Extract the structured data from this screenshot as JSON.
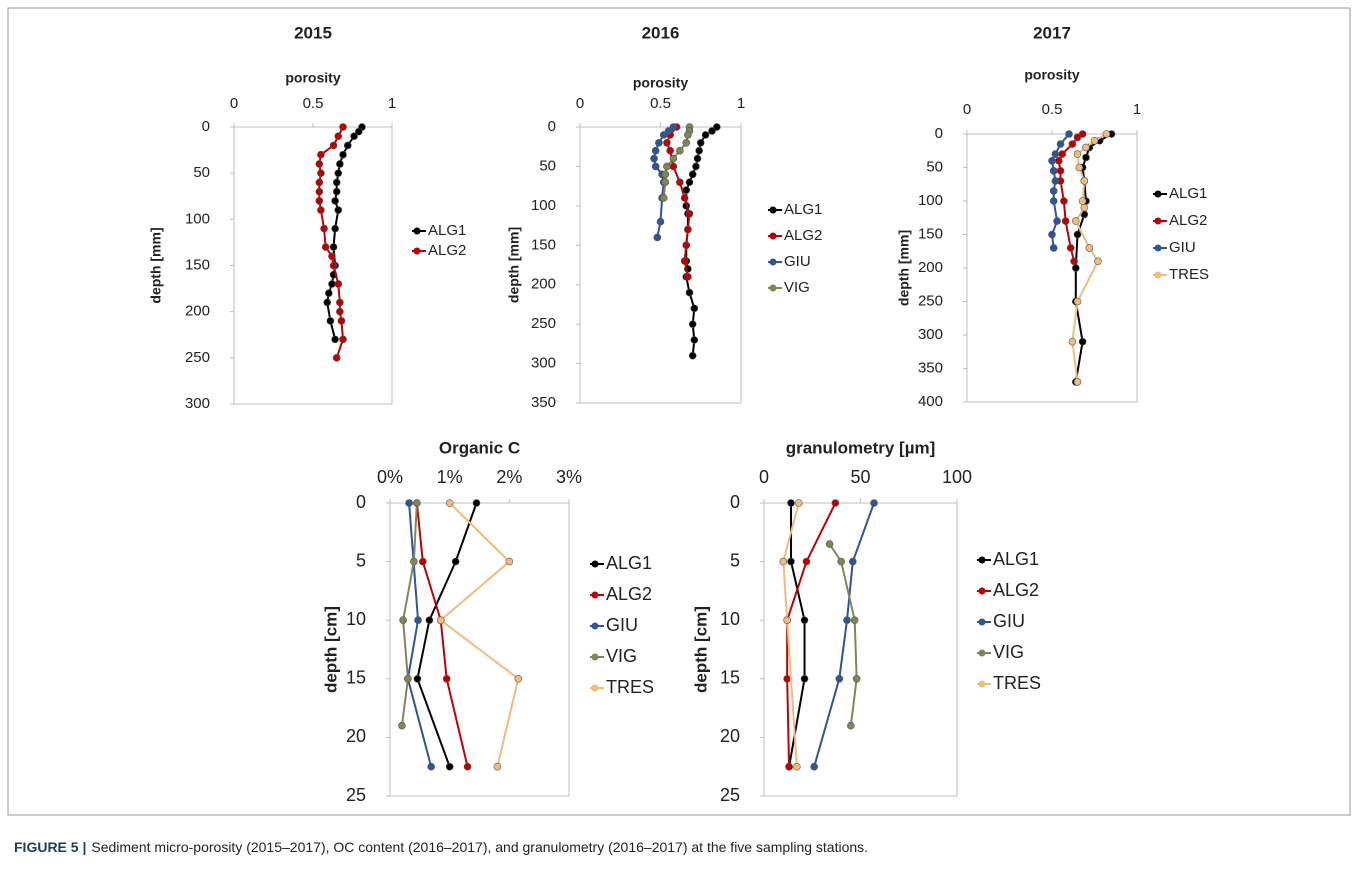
{
  "chart_data": [
    {
      "type": "line",
      "title": "2015",
      "x_label": "porosity",
      "y_label": "depth [mm]",
      "xlim": [
        0,
        1
      ],
      "xticks": [
        0,
        0.5,
        1
      ],
      "ylim": [
        0,
        300
      ],
      "yticks": [
        0,
        50,
        100,
        150,
        200,
        250,
        300
      ],
      "y_inverted": true,
      "legend": "right",
      "series": [
        {
          "name": "ALG1",
          "color": "#000000",
          "x": [
            0.81,
            0.79,
            0.76,
            0.72,
            0.69,
            0.67,
            0.66,
            0.65,
            0.65,
            0.64,
            0.66,
            0.64,
            0.63,
            0.64,
            0.63,
            0.62,
            0.6,
            0.59,
            0.61,
            0.64
          ],
          "values": [
            0,
            5,
            10,
            20,
            30,
            40,
            50,
            60,
            70,
            80,
            90,
            110,
            130,
            150,
            160,
            170,
            180,
            190,
            210,
            230
          ]
        },
        {
          "name": "ALG2",
          "color": "#c00000",
          "x": [
            0.69,
            0.66,
            0.63,
            0.55,
            0.54,
            0.55,
            0.54,
            0.54,
            0.54,
            0.55,
            0.57,
            0.58,
            0.62,
            0.63,
            0.66,
            0.67,
            0.67,
            0.68,
            0.69,
            0.65
          ],
          "values": [
            0,
            10,
            20,
            30,
            40,
            50,
            60,
            70,
            80,
            90,
            110,
            130,
            140,
            150,
            170,
            190,
            200,
            210,
            230,
            250
          ]
        }
      ]
    },
    {
      "type": "line",
      "title": "2016",
      "x_label": "porosity",
      "y_label": "depth [mm]",
      "xlim": [
        0,
        1
      ],
      "xticks": [
        0,
        0.5,
        1
      ],
      "ylim": [
        0,
        350
      ],
      "yticks": [
        0,
        50,
        100,
        150,
        200,
        250,
        300,
        350
      ],
      "y_inverted": true,
      "legend": "right",
      "series": [
        {
          "name": "ALG1",
          "color": "#000000",
          "x": [
            0.85,
            0.82,
            0.78,
            0.75,
            0.74,
            0.73,
            0.72,
            0.7,
            0.68,
            0.66,
            0.66,
            0.67,
            0.67,
            0.66,
            0.66,
            0.67,
            0.66,
            0.68,
            0.71,
            0.7,
            0.71,
            0.7
          ],
          "values": [
            0,
            5,
            10,
            20,
            30,
            40,
            50,
            60,
            70,
            80,
            100,
            110,
            130,
            150,
            170,
            180,
            190,
            210,
            230,
            250,
            270,
            290
          ]
        },
        {
          "name": "ALG2",
          "color": "#c00000",
          "x": [
            0.6,
            0.56,
            0.54,
            0.56,
            0.58,
            0.62,
            0.65,
            0.68,
            0.67,
            0.66,
            0.65,
            0.67
          ],
          "values": [
            0,
            10,
            20,
            30,
            50,
            70,
            90,
            110,
            130,
            150,
            170,
            190
          ]
        },
        {
          "name": "GIU",
          "color": "#2e5597",
          "x": [
            0.58,
            0.55,
            0.52,
            0.49,
            0.47,
            0.46,
            0.47,
            0.51,
            0.52,
            0.51,
            0.5,
            0.48
          ],
          "values": [
            0,
            5,
            10,
            20,
            30,
            40,
            50,
            60,
            70,
            90,
            120,
            140
          ]
        },
        {
          "name": "VIG",
          "color": "#84845a",
          "x": [
            0.68,
            0.68,
            0.67,
            0.66,
            0.62,
            0.58,
            0.54,
            0.53,
            0.53,
            0.52
          ],
          "values": [
            0,
            5,
            10,
            20,
            30,
            40,
            50,
            60,
            70,
            90
          ]
        }
      ]
    },
    {
      "type": "line",
      "title": "2017",
      "x_label": "porosity",
      "y_label": "depth [mm]",
      "xlim": [
        0,
        1
      ],
      "xticks": [
        0,
        0.5,
        1
      ],
      "ylim": [
        0,
        400
      ],
      "yticks": [
        0,
        50,
        100,
        150,
        200,
        250,
        300,
        350,
        400
      ],
      "y_inverted": true,
      "legend": "right",
      "series": [
        {
          "name": "ALG1",
          "color": "#000000",
          "x": [
            0.85,
            0.78,
            0.72,
            0.7,
            0.68,
            0.69,
            0.7,
            0.69,
            0.65,
            0.64,
            0.64,
            0.68,
            0.64
          ],
          "values": [
            0,
            10,
            20,
            35,
            50,
            70,
            100,
            120,
            150,
            200,
            250,
            310,
            370
          ]
        },
        {
          "name": "ALG2",
          "color": "#c00000",
          "x": [
            0.68,
            0.65,
            0.62,
            0.56,
            0.54,
            0.55,
            0.55,
            0.57,
            0.58,
            0.61,
            0.63
          ],
          "values": [
            0,
            5,
            15,
            30,
            40,
            55,
            70,
            100,
            130,
            170,
            190
          ]
        },
        {
          "name": "GIU",
          "color": "#2e5597",
          "x": [
            0.6,
            0.55,
            0.52,
            0.5,
            0.51,
            0.52,
            0.51,
            0.51,
            0.53,
            0.5,
            0.51
          ],
          "values": [
            0,
            15,
            30,
            40,
            55,
            70,
            85,
            100,
            130,
            150,
            170
          ]
        },
        {
          "name": "TRES",
          "color": "#f0bb7c",
          "x": [
            0.82,
            0.75,
            0.7,
            0.65,
            0.66,
            0.69,
            0.68,
            0.69,
            0.64,
            0.72,
            0.77,
            0.65,
            0.62,
            0.65
          ],
          "values": [
            0,
            10,
            20,
            30,
            50,
            70,
            100,
            110,
            130,
            170,
            190,
            250,
            310,
            370
          ]
        }
      ]
    },
    {
      "type": "line",
      "x_label": "Organic C",
      "y_label": "depth [cm]",
      "xlim": [
        0,
        3
      ],
      "xticks": [
        {
          "value": 0,
          "label": "0%"
        },
        {
          "value": 1,
          "label": "1%"
        },
        {
          "value": 2,
          "label": "2%"
        },
        {
          "value": 3,
          "label": "3%"
        }
      ],
      "ylim": [
        0,
        25
      ],
      "yticks": [
        0,
        5,
        10,
        15,
        20,
        25
      ],
      "y_inverted": true,
      "legend": "right",
      "series": [
        {
          "name": "ALG1",
          "color": "#000000",
          "x": [
            1.45,
            1.1,
            0.66,
            0.46,
            1.0
          ],
          "values": [
            0,
            5,
            10,
            15,
            22.5
          ]
        },
        {
          "name": "ALG2",
          "color": "#c00000",
          "x": [
            0.45,
            0.55,
            0.85,
            0.95,
            1.3
          ],
          "values": [
            0,
            5,
            10,
            15,
            22.5
          ]
        },
        {
          "name": "GIU",
          "color": "#2e5597",
          "x": [
            0.32,
            0.47,
            0.3,
            0.69
          ],
          "values": [
            0,
            10,
            15,
            22.5
          ]
        },
        {
          "name": "VIG",
          "color": "#84845a",
          "x": [
            0.45,
            0.4,
            0.22,
            0.3,
            0.2
          ],
          "values": [
            0,
            5,
            10,
            15,
            19
          ]
        },
        {
          "name": "TRES",
          "color": "#f0bb7c",
          "x": [
            1.0,
            2.0,
            0.85,
            2.15,
            1.8
          ],
          "values": [
            0,
            5,
            10,
            15,
            22.5
          ]
        }
      ]
    },
    {
      "type": "line",
      "x_label": "granulometry [µm]",
      "y_label": "depth [cm]",
      "xlim": [
        0,
        100
      ],
      "xticks": [
        0,
        50,
        100
      ],
      "ylim": [
        0,
        25
      ],
      "yticks": [
        0,
        5,
        10,
        15,
        20,
        25
      ],
      "y_inverted": true,
      "legend": "right",
      "series": [
        {
          "name": "ALG1",
          "color": "#000000",
          "x": [
            14,
            14,
            21,
            21,
            13
          ],
          "values": [
            0,
            5,
            10,
            15,
            22.5
          ]
        },
        {
          "name": "ALG2",
          "color": "#c00000",
          "x": [
            37,
            22,
            12,
            12,
            13
          ],
          "values": [
            0,
            5,
            10,
            15,
            22.5
          ]
        },
        {
          "name": "GIU",
          "color": "#2e5597",
          "x": [
            57,
            46,
            43,
            39,
            26
          ],
          "values": [
            0,
            5,
            10,
            15,
            22.5
          ]
        },
        {
          "name": "VIG",
          "color": "#84845a",
          "x": [
            34,
            40,
            47,
            48,
            45
          ],
          "values": [
            3.5,
            5,
            10,
            15,
            19
          ]
        },
        {
          "name": "TRES",
          "color": "#f0bb7c",
          "x": [
            18,
            10,
            12,
            17
          ],
          "values": [
            0,
            5,
            10,
            22.5
          ]
        }
      ]
    }
  ],
  "caption": {
    "label": "FIGURE 5 |",
    "text": "Sediment micro-porosity (2015–2017), OC content (2016–2017), and granulometry (2016–2017) at the five sampling stations."
  }
}
